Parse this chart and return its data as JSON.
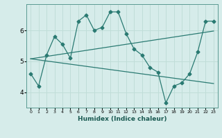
{
  "background_color": "#d6ecea",
  "grid_color": "#c0ddd8",
  "line_color": "#2a7a72",
  "x_label": "Humidex (Indice chaleur)",
  "x_ticks": [
    0,
    1,
    2,
    3,
    4,
    5,
    6,
    7,
    8,
    9,
    10,
    11,
    12,
    13,
    14,
    15,
    16,
    17,
    18,
    19,
    20,
    21,
    22,
    23
  ],
  "y_ticks": [
    4,
    5,
    6
  ],
  "ylim": [
    3.5,
    6.85
  ],
  "xlim": [
    -0.5,
    23.5
  ],
  "series1_x": [
    0,
    1,
    2,
    3,
    4,
    5,
    6,
    7,
    8,
    9,
    10,
    11,
    12,
    13,
    14,
    15,
    16,
    17,
    18,
    19,
    20,
    21,
    22,
    23
  ],
  "series1_y": [
    4.6,
    4.2,
    5.2,
    5.8,
    5.55,
    5.1,
    6.3,
    6.5,
    6.0,
    6.1,
    6.6,
    6.6,
    5.9,
    5.4,
    5.2,
    4.8,
    4.65,
    3.65,
    4.2,
    4.3,
    4.6,
    5.3,
    6.3,
    6.3
  ],
  "series2_x": [
    0,
    23
  ],
  "series2_y": [
    5.08,
    5.98
  ],
  "series3_x": [
    0,
    23
  ],
  "series3_y": [
    5.08,
    4.28
  ]
}
